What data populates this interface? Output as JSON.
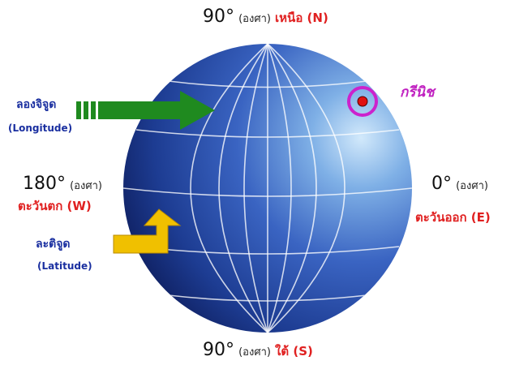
{
  "north": {
    "degree": "90°",
    "unit": "(องศา)",
    "label": "เหนือ (N)"
  },
  "south": {
    "degree": "90°",
    "unit": "(องศา)",
    "label": "ใต้ (S)"
  },
  "west": {
    "degree": "180°",
    "unit": "(องศา)",
    "label": "ตะวันตก (W)"
  },
  "east": {
    "degree": "0°",
    "unit": "(องศา)",
    "label": "ตะวันออก (E)"
  },
  "longitude": {
    "thai": "ลองจิจูด",
    "english": "(Longitude)",
    "arrow_color": "#1f8a1f"
  },
  "latitude": {
    "thai": "ละติจูด",
    "english": "(Latitude)",
    "arrow_color": "#f0c000"
  },
  "greenwich": {
    "label": "กรีนิช",
    "ring_color": "#cc22cc",
    "dot_color": "#e01010"
  },
  "colors": {
    "globe_dark": "#0c1d5e",
    "globe_mid": "#2e56b8",
    "globe_light": "#cfe6fb",
    "label_red": "#e02020",
    "label_blue": "#1a2fa0"
  }
}
